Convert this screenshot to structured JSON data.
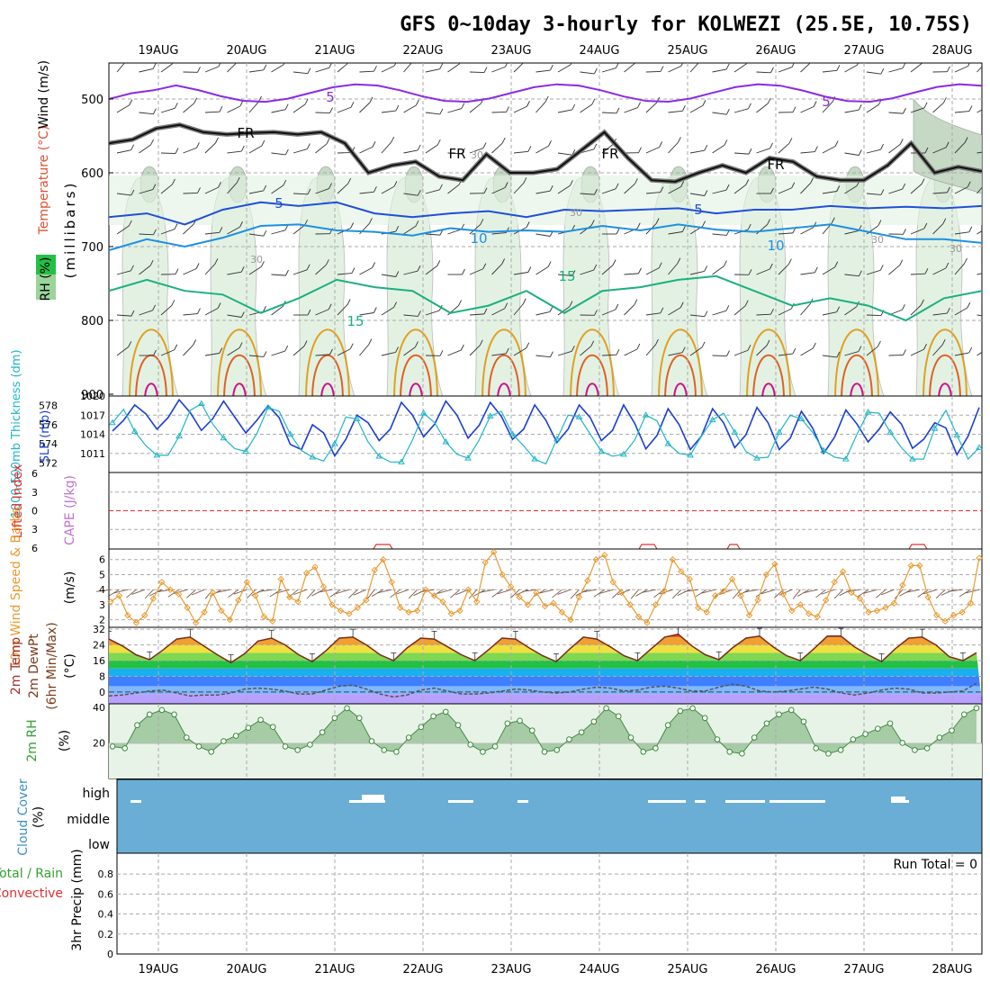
{
  "title": "GFS 0~10day 3-hourly for KOLWEZI (25.5E, 10.75S)",
  "dates": [
    "19AUG",
    "20AUG",
    "21AUG",
    "22AUG",
    "23AUG",
    "24AUG",
    "25AUG",
    "26AUG",
    "27AUG",
    "28AUG"
  ],
  "colors": {
    "wind_5": "#8a2be2",
    "freezing": "#111111",
    "temp_5": "#1f4fd8",
    "temp_10": "#1e90e0",
    "temp_15": "#1bb080",
    "temp_20": "#e0a020",
    "temp_25": "#e06020",
    "temp_30": "#d0108a",
    "rh_fill": "#e3f1e3",
    "rh_fill_dark": "#c5d9c5",
    "slp": "#1a3fd0",
    "thickness": "#22b5c5",
    "lifted": "#e03030",
    "wind10m": "#e89b30",
    "barb": "#7a5a4a",
    "rh2m": "#6aaa6a",
    "cloud_bg": "#6aaed6"
  },
  "panels": {
    "upper": {
      "ylabel_wind": "Wind (m/s)",
      "ylabel_temp": "Temperature (°C)",
      "ylabel_rh": "RH (%)",
      "ylabel_units": "(millibars)",
      "yticks": [
        "500",
        "600",
        "700",
        "800",
        "900"
      ],
      "contour_labels": [
        "5",
        "5",
        "FR",
        "FR",
        "FR",
        "FR",
        "5",
        "5",
        "10",
        "10",
        "15",
        "15",
        "30",
        "30",
        "30",
        "30",
        "30"
      ]
    },
    "slp_thickness": {
      "ylabel_thickness": "1000-500mb Thickness (dm)",
      "ylabel_slp": "SLP (mb)",
      "left_ticks": [
        "578",
        "576",
        "574",
        "572"
      ],
      "right_ticks": [
        "1020",
        "1017",
        "1014",
        "1011"
      ]
    },
    "lifted_cape": {
      "ylabel_lifted": "Lifted Index",
      "ylabel_cape": "CAPE (J/kg)",
      "yticks": [
        "-6",
        "-3",
        "0",
        "3",
        "6"
      ]
    },
    "wind10m": {
      "ylabel": "10m Wind Speed & Barbs",
      "units": "(m/s)",
      "yticks": [
        "6",
        "5",
        "4",
        "3",
        "2"
      ]
    },
    "temp2m": {
      "ylabel_temp": "2m Temp",
      "ylabel_dew": "2m DewPt",
      "ylabel_minmax": "(6hr Min/Max)",
      "units": "(°C)",
      "yticks": [
        "32",
        "24",
        "16",
        "8",
        "0"
      ]
    },
    "rh2m": {
      "ylabel": "2m RH",
      "units": "(%)",
      "yticks": [
        "40",
        "20"
      ]
    },
    "cloud": {
      "ylabel": "Cloud Cover",
      "units": "(%)",
      "levels": [
        "high",
        "middle",
        "low"
      ]
    },
    "precip": {
      "ylabel_total": "Total / Rain",
      "ylabel_conv": "Convective",
      "ylabel": "3hr Precip (mm)",
      "yticks": [
        "0.8",
        "0.6",
        "0.4",
        "0.2",
        "0"
      ],
      "run_total": "Run Total = 0"
    }
  },
  "chart_data": [
    {
      "type": "line",
      "name": "slp_thickness",
      "ylim_slp": [
        1008,
        1020
      ],
      "ylim_thickness": [
        571,
        579
      ],
      "slp": [
        1014.5,
        1016.2,
        1018.6,
        1017.2,
        1014.8,
        1016.6,
        1019.4,
        1017.4,
        1014.6,
        1016.4,
        1019.2,
        1016.7,
        1014.2,
        1016.2,
        1018.5,
        1016.6,
        1012.4,
        1011.6,
        1015.5,
        1014.2,
        1010.6,
        1013.2,
        1017.0,
        1015.8,
        1013.0,
        1014.8,
        1019.0,
        1017.0,
        1013.6,
        1015.6,
        1019.2,
        1017.0,
        1013.4,
        1015.4,
        1019.0,
        1016.8,
        1013.2,
        1014.8,
        1018.6,
        1016.2,
        1012.7,
        1014.8,
        1018.6,
        1016.6,
        1013.0,
        1014.6,
        1018.6,
        1015.7,
        1011.7,
        1013.8,
        1018.0,
        1015.5,
        1011.6,
        1013.7,
        1018.0,
        1015.8,
        1011.9,
        1013.9,
        1018.2,
        1015.8,
        1011.6,
        1013.4,
        1017.6,
        1015.0,
        1011.0,
        1013.6,
        1017.8,
        1015.6,
        1012.8,
        1014.8,
        1017.5,
        1015.6,
        1011.8,
        1013.2,
        1015.8,
        1015.0,
        1010.8,
        1013.7,
        1018.2
      ],
      "thickness": [
        576.2,
        577.6,
        575.3,
        573.8,
        572.8,
        572.8,
        574.8,
        577.5,
        578.2,
        576.1,
        574.6,
        573.5,
        573.2,
        575.1,
        577.8,
        577.4,
        575.0,
        573.3,
        572.6,
        572.2,
        574.0,
        576.8,
        576.6,
        574.2,
        572.7,
        572.1,
        572.1,
        574.4,
        577.2,
        576.2,
        574.2,
        572.9,
        572.5,
        574.4,
        576.9,
        577.4,
        575.0,
        573.8,
        572.4,
        571.9,
        574.5,
        577.0,
        576.8,
        575.0,
        573.2,
        572.7,
        572.9,
        574.4,
        577.0,
        576.4,
        574.0,
        573.0,
        572.8,
        574.8,
        576.5,
        577.2,
        575.2,
        573.2,
        572.5,
        572.6,
        575.2,
        577.0,
        576.6,
        575.2,
        573.3,
        572.6,
        572.4,
        575.0,
        577.3,
        577.2,
        575.2,
        573.6,
        572.4,
        572.4,
        575.6,
        577.5,
        574.9,
        572.4,
        573.6
      ]
    },
    {
      "type": "line",
      "name": "wind10m",
      "ylim": [
        1.5,
        6.7
      ],
      "values": [
        3.2,
        3.6,
        2.3,
        1.8,
        2.3,
        3.4,
        4.5,
        4.0,
        3.7,
        2.8,
        1.8,
        2.5,
        3.8,
        2.6,
        2.0,
        3.3,
        4.5,
        3.6,
        2.2,
        1.9,
        4.7,
        3.5,
        3.2,
        5.1,
        5.5,
        4.2,
        3.0,
        2.6,
        2.4,
        2.8,
        3.3,
        5.3,
        6.0,
        4.5,
        2.8,
        2.5,
        2.6,
        4.0,
        3.6,
        3.2,
        2.4,
        2.6,
        4.0,
        3.2,
        5.8,
        6.5,
        5.0,
        4.2,
        3.5,
        3.0,
        3.8,
        2.9,
        3.1,
        2.5,
        2.0,
        3.5,
        4.6,
        6.0,
        6.3,
        4.5,
        3.8,
        3.0,
        2.2,
        1.8,
        3.0,
        3.9,
        6.0,
        5.2,
        4.7,
        2.8,
        2.5,
        3.6,
        3.9,
        4.7,
        3.6,
        2.3,
        3.3,
        5.0,
        5.7,
        3.7,
        2.6,
        3.0,
        2.4,
        2.2,
        3.3,
        4.5,
        5.2,
        3.8,
        3.4,
        2.5,
        2.6,
        2.8,
        3.1,
        4.3,
        5.6,
        5.6,
        3.5,
        2.3,
        1.9,
        2.3,
        2.5,
        3.1,
        6.1
      ]
    },
    {
      "type": "area",
      "name": "rh2m",
      "ylim": [
        0,
        42
      ],
      "values": [
        18.0,
        17.0,
        30.0,
        36.0,
        38.5,
        36.0,
        23.0,
        18.0,
        15.0,
        21.0,
        24.0,
        28.5,
        33.0,
        29.0,
        18.0,
        16.0,
        19.0,
        26.0,
        34.0,
        39.5,
        34.0,
        21.0,
        16.0,
        15.0,
        23.0,
        29.0,
        35.0,
        37.5,
        30.0,
        19.0,
        15.0,
        18.0,
        31.0,
        32.5,
        27.0,
        15.0,
        16.0,
        22.0,
        26.0,
        32.0,
        39.5,
        35.0,
        23.0,
        15.0,
        17.0,
        30.0,
        38.0,
        39.5,
        34.0,
        22.0,
        15.0,
        14.0,
        23.0,
        31.0,
        36.0,
        38.5,
        32.0,
        17.0,
        14.0,
        16.0,
        22.0,
        25.0,
        28.0,
        31.0,
        20.0,
        16.0,
        17.0,
        23.0,
        27.0,
        36.0,
        39.5
      ]
    },
    {
      "type": "area",
      "name": "temp2m",
      "ylim": [
        -6,
        33
      ],
      "temperature": [
        27.0,
        23.5,
        19.0,
        16.5,
        21.5,
        27.0,
        28.0,
        23.5,
        19.0,
        15.0,
        19.5,
        26.0,
        27.5,
        24.0,
        19.0,
        15.5,
        21.0,
        27.5,
        28.0,
        24.0,
        19.0,
        16.0,
        22.5,
        27.5,
        27.0,
        23.0,
        19.0,
        16.0,
        21.5,
        27.5,
        27.0,
        22.5,
        18.5,
        15.5,
        22.0,
        28.0,
        27.0,
        23.0,
        18.5,
        16.0,
        22.0,
        28.0,
        29.5,
        23.5,
        19.0,
        16.5,
        22.5,
        27.5,
        28.5,
        23.0,
        18.5,
        16.0,
        22.0,
        28.5,
        28.5,
        23.0,
        19.0,
        15.5,
        22.0,
        27.5,
        28.0,
        24.0,
        18.0,
        16.0,
        20.0
      ],
      "dewpoint": [
        -2.0,
        -1.5,
        -0.5,
        0.5,
        1.0,
        -0.5,
        -2.0,
        -1.5,
        -1.5,
        -0.5,
        1.5,
        2.0,
        1.5,
        0.5,
        -1.0,
        -1.0,
        1.0,
        3.0,
        3.5,
        1.5,
        -1.0,
        -2.5,
        -1.5,
        1.0,
        2.0,
        0.5,
        -1.0,
        -1.0,
        -0.5,
        0.5,
        1.5,
        1.0,
        0.0,
        -0.5,
        0.0,
        1.5,
        2.5,
        2.0,
        0.5,
        1.0,
        2.5,
        3.0,
        2.0,
        0.5,
        0.5,
        2.5,
        4.0,
        3.0,
        0.5,
        0.0,
        0.5,
        1.5,
        2.5,
        1.5,
        -0.5,
        -1.5,
        -0.5,
        1.0,
        2.0,
        1.5,
        -0.5,
        -0.5,
        0.0,
        0.5,
        4.5
      ]
    },
    {
      "type": "line",
      "name": "upper_air_contours",
      "ylim_mb": [
        450,
        900
      ],
      "freezing_level_mb": [
        560,
        555,
        540,
        535,
        545,
        548,
        546,
        545,
        548,
        545,
        560,
        600,
        590,
        585,
        605,
        610,
        575,
        600,
        600,
        595,
        570,
        545,
        580,
        610,
        612,
        600,
        590,
        600,
        580,
        585,
        605,
        610,
        610,
        590,
        560,
        600,
        592,
        598
      ],
      "temp5_mb": [
        660,
        655,
        670,
        650,
        640,
        645,
        640,
        655,
        660,
        655,
        652,
        660,
        650,
        652,
        650,
        648,
        655,
        650,
        650,
        645,
        648,
        646,
        648,
        645
      ],
      "temp10_mb": [
        705,
        690,
        700,
        688,
        672,
        670,
        678,
        680,
        685,
        675,
        680,
        678,
        680,
        672,
        678,
        670,
        677,
        680,
        675,
        670,
        680,
        690,
        690,
        695
      ],
      "temp15_mb": [
        760,
        745,
        760,
        765,
        790,
        770,
        745,
        755,
        760,
        790,
        780,
        760,
        790,
        760,
        755,
        745,
        740,
        760,
        780,
        770,
        780,
        800,
        770,
        760
      ]
    }
  ]
}
